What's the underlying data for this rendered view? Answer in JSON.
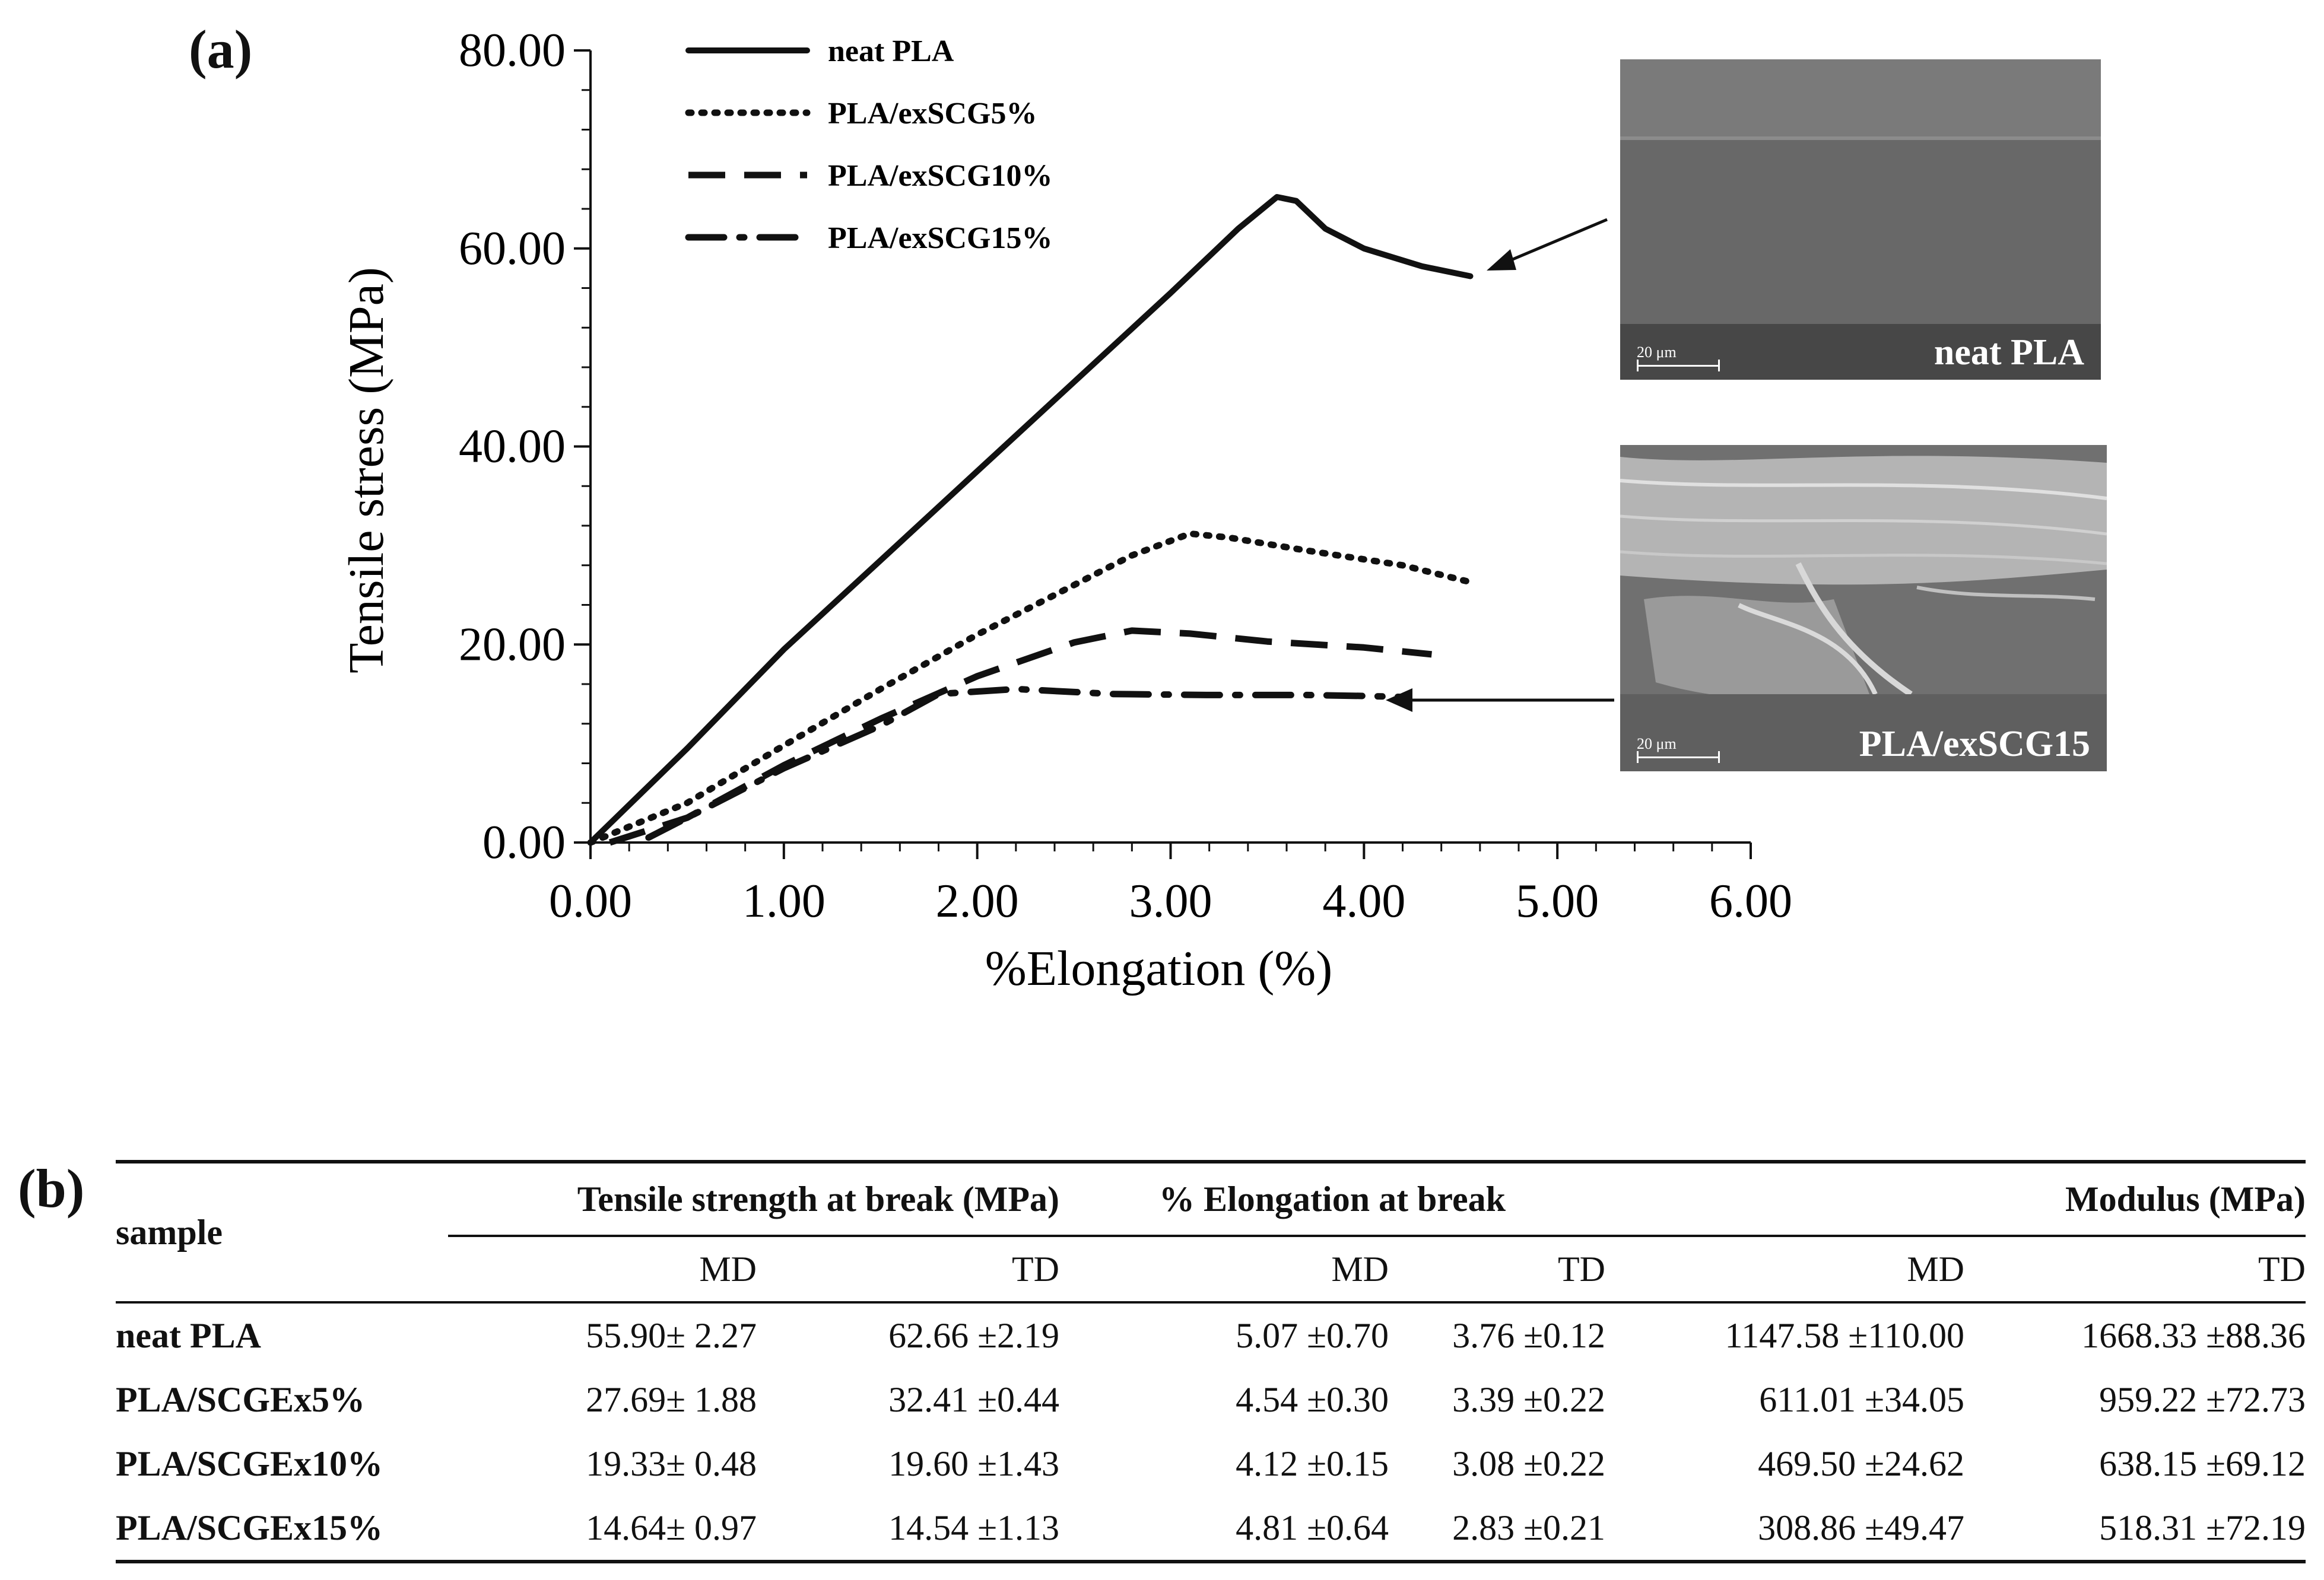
{
  "panel_a_label": "(a)",
  "panel_b_label": "(b)",
  "sem_images": [
    {
      "label": "neat PLA",
      "scale": "20 μm"
    },
    {
      "label": "PLA/exSCG15",
      "scale": "20 μm"
    }
  ],
  "chart_data": {
    "type": "line",
    "title": "",
    "xlabel": "%Elongation (%)",
    "ylabel": "Tensile stress (MPa)",
    "xlim": [
      0,
      6
    ],
    "ylim": [
      0,
      80
    ],
    "xticks": [
      "0.00",
      "1.00",
      "2.00",
      "3.00",
      "4.00",
      "5.00",
      "6.00"
    ],
    "yticks": [
      "0.00",
      "20.00",
      "40.00",
      "60.00",
      "80.00"
    ],
    "legend_position": "top-left",
    "series": [
      {
        "name": "neat PLA",
        "style": "solid",
        "x": [
          0,
          0.5,
          1.0,
          1.5,
          2.0,
          2.5,
          3.0,
          3.35,
          3.55,
          3.65,
          3.8,
          4.0,
          4.3,
          4.55
        ],
        "y": [
          0,
          9.5,
          19.5,
          28.5,
          37.5,
          46.5,
          55.5,
          62,
          65.2,
          64.8,
          62,
          60,
          58.2,
          57.2
        ]
      },
      {
        "name": "PLA/exSCG5%",
        "style": "dotted",
        "x": [
          0,
          0.5,
          1.0,
          1.5,
          2.0,
          2.5,
          2.8,
          3.1,
          3.3,
          3.7,
          4.2,
          4.55
        ],
        "y": [
          0,
          4,
          9.8,
          15.5,
          21,
          26,
          29,
          31.2,
          30.8,
          29.5,
          28,
          26.3
        ]
      },
      {
        "name": "PLA/exSCG10%",
        "style": "dashed",
        "x": [
          0.1,
          0.5,
          1.0,
          1.5,
          2.0,
          2.5,
          2.8,
          3.1,
          3.5,
          4.0,
          4.35
        ],
        "y": [
          0,
          2.5,
          7.8,
          12.5,
          16.8,
          20.2,
          21.4,
          21.1,
          20.3,
          19.7,
          19.0
        ]
      },
      {
        "name": "PLA/exSCG15%",
        "style": "dashdot",
        "x": [
          0.3,
          0.6,
          1.0,
          1.5,
          1.8,
          2.2,
          2.7,
          3.2,
          3.7,
          4.0,
          4.2
        ],
        "y": [
          0.5,
          3.5,
          7.5,
          11.8,
          15.0,
          15.5,
          15.0,
          14.9,
          14.9,
          14.8,
          14.7
        ]
      }
    ]
  },
  "table": {
    "sample_header": "sample",
    "group_headers": [
      "Tensile strength at break  (MPa)",
      "% Elongation at break",
      "Modulus (MPa)"
    ],
    "sub_headers": [
      "MD",
      "TD",
      "MD",
      "TD",
      "MD",
      "TD"
    ],
    "rows": [
      {
        "sample": "neat PLA",
        "values": [
          "55.90± 2.27",
          "62.66 ±2.19",
          "5.07 ±0.70",
          "3.76 ±0.12",
          "1147.58 ±110.00",
          "1668.33 ±88.36"
        ]
      },
      {
        "sample": "PLA/SCGEx5%",
        "values": [
          "27.69± 1.88",
          "32.41 ±0.44",
          "4.54 ±0.30",
          "3.39 ±0.22",
          "611.01 ±34.05",
          "959.22 ±72.73"
        ]
      },
      {
        "sample": "PLA/SCGEx10%",
        "values": [
          "19.33± 0.48",
          "19.60 ±1.43",
          "4.12 ±0.15",
          "3.08 ±0.22",
          "469.50 ±24.62",
          "638.15 ±69.12"
        ]
      },
      {
        "sample": "PLA/SCGEx15%",
        "values": [
          "14.64± 0.97",
          "14.54 ±1.13",
          "4.81 ±0.64",
          "2.83 ±0.21",
          "308.86 ±49.47",
          "518.31 ±72.19"
        ]
      }
    ]
  }
}
